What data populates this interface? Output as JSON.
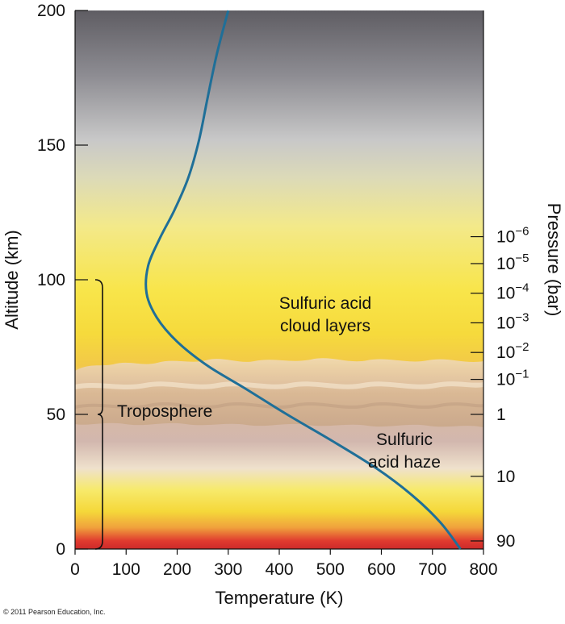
{
  "chart_data": {
    "type": "line",
    "xlabel": "Temperature (K)",
    "ylabel": "Altitude (km)",
    "y2label": "Pressure (bar)",
    "xlim": [
      0,
      800
    ],
    "ylim": [
      0,
      200
    ],
    "x_ticks": [
      0,
      100,
      200,
      300,
      400,
      500,
      600,
      700,
      800
    ],
    "y_ticks": [
      0,
      50,
      100,
      150,
      200
    ],
    "pressure_ticks": [
      {
        "altitude": 116,
        "base": "10",
        "exp": "−6"
      },
      {
        "altitude": 106,
        "base": "10",
        "exp": "−5"
      },
      {
        "altitude": 95,
        "base": "10",
        "exp": "−4"
      },
      {
        "altitude": 84,
        "base": "10",
        "exp": "−3"
      },
      {
        "altitude": 73,
        "base": "10",
        "exp": "−2"
      },
      {
        "altitude": 63,
        "base": "10",
        "exp": "−1"
      },
      {
        "altitude": 50,
        "base": "1",
        "exp": ""
      },
      {
        "altitude": 27,
        "base": "10",
        "exp": ""
      },
      {
        "altitude": 3,
        "base": "90",
        "exp": ""
      }
    ],
    "series": [
      {
        "color": "#1f6f98",
        "points": [
          [
            755,
            0
          ],
          [
            715,
            10
          ],
          [
            660,
            20
          ],
          [
            590,
            30
          ],
          [
            505,
            40
          ],
          [
            415,
            50
          ],
          [
            330,
            60
          ],
          [
            260,
            68
          ],
          [
            200,
            77
          ],
          [
            160,
            86
          ],
          [
            140,
            95
          ],
          [
            143,
            105
          ],
          [
            165,
            115
          ],
          [
            195,
            126
          ],
          [
            222,
            138
          ],
          [
            243,
            152
          ],
          [
            260,
            168
          ],
          [
            278,
            184
          ],
          [
            300,
            200
          ]
        ]
      }
    ],
    "annotations": {
      "cloud_layers": [
        "Sulfuric acid",
        "cloud layers"
      ],
      "haze": [
        "Sulfuric",
        "acid haze"
      ],
      "troposphere": "Troposphere"
    },
    "troposphere_range": [
      0,
      100
    ]
  },
  "copyright": "© 2011 Pearson Education, Inc."
}
